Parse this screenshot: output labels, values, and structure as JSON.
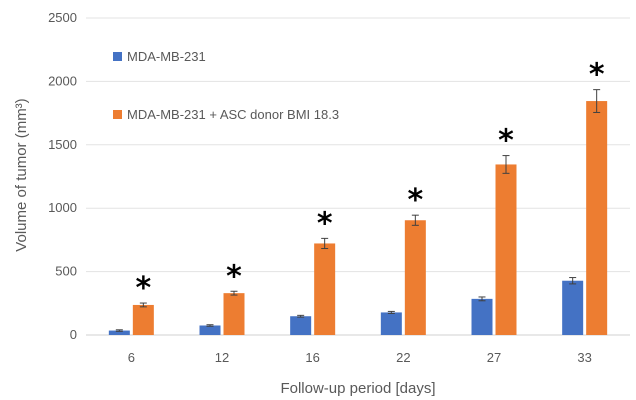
{
  "chart_data": {
    "type": "bar",
    "categories": [
      "6",
      "12",
      "16",
      "22",
      "27",
      "33"
    ],
    "series": [
      {
        "name": "MDA-MB-231",
        "color": "#4472C4",
        "values": [
          35,
          75,
          148,
          178,
          285,
          428
        ],
        "errors": [
          6,
          6,
          7,
          8,
          15,
          25
        ]
      },
      {
        "name": "MDA-MB-231 + ASC donor BMI 18.3",
        "color": "#ED7D31",
        "values": [
          237,
          330,
          722,
          905,
          1345,
          1845
        ],
        "errors": [
          15,
          15,
          40,
          40,
          70,
          90
        ]
      }
    ],
    "xlabel": "Follow-up period [days]",
    "ylabel": "Volume of tumor (mm³)",
    "ylim": [
      0,
      2500
    ],
    "yticks": [
      0,
      500,
      1000,
      1500,
      2000,
      2500
    ],
    "ytick_labels": [
      "0",
      "500",
      "1000",
      "1500",
      "2000",
      "2500"
    ],
    "grid": true,
    "legend_position": "top-left",
    "annotations": [
      "*",
      "*",
      "*",
      "*",
      "*",
      "*"
    ],
    "annotation_series": 1
  }
}
